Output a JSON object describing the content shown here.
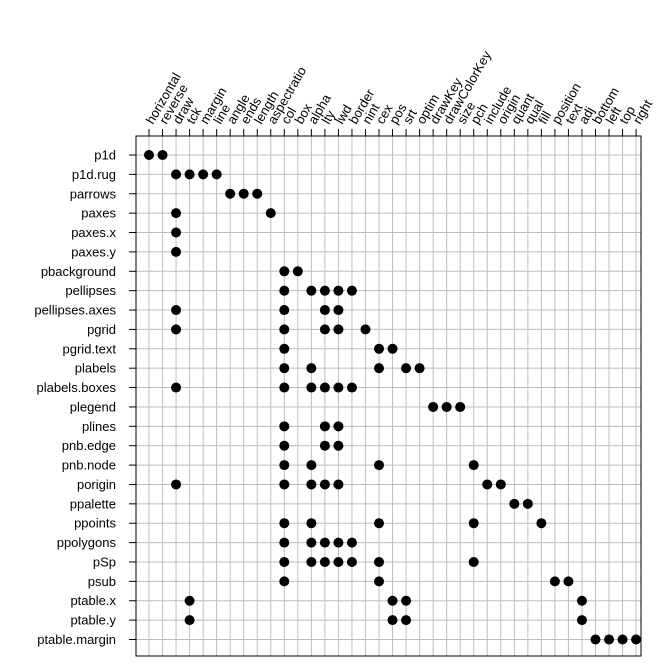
{
  "chart_data": {
    "type": "scatter",
    "title": "",
    "xlabel": "",
    "ylabel": "",
    "grid": true,
    "legend": "none",
    "x_categories": [
      "horizontal",
      "reverse",
      "draw",
      "tck",
      "margin",
      "line",
      "angle",
      "ends",
      "length",
      "aspectratio",
      "col",
      "box",
      "alpha",
      "lty",
      "lwd",
      "border",
      "nint",
      "cex",
      "pos",
      "srt",
      "optim",
      "drawKey",
      "drawColorKey",
      "size",
      "pch",
      "include",
      "origin",
      "quant",
      "qual",
      "fill",
      "position",
      "text",
      "adj",
      "bottom",
      "left",
      "top",
      "right"
    ],
    "y_categories": [
      "p1d",
      "p1d.rug",
      "parrows",
      "paxes",
      "paxes.x",
      "paxes.y",
      "pbackground",
      "pellipses",
      "pellipses.axes",
      "pgrid",
      "pgrid.text",
      "plabels",
      "plabels.boxes",
      "plegend",
      "plines",
      "pnb.edge",
      "pnb.node",
      "porigin",
      "ppalette",
      "ppoints",
      "ppolygons",
      "pSp",
      "psub",
      "ptable.x",
      "ptable.y",
      "ptable.margin"
    ],
    "points": [
      {
        "y": "p1d",
        "x": [
          "horizontal",
          "reverse"
        ]
      },
      {
        "y": "p1d.rug",
        "x": [
          "draw",
          "tck",
          "margin",
          "line"
        ]
      },
      {
        "y": "parrows",
        "x": [
          "angle",
          "ends",
          "length"
        ]
      },
      {
        "y": "paxes",
        "x": [
          "draw",
          "aspectratio"
        ]
      },
      {
        "y": "paxes.x",
        "x": [
          "draw"
        ]
      },
      {
        "y": "paxes.y",
        "x": [
          "draw"
        ]
      },
      {
        "y": "pbackground",
        "x": [
          "col",
          "box"
        ]
      },
      {
        "y": "pellipses",
        "x": [
          "col",
          "alpha",
          "lty",
          "lwd",
          "border"
        ]
      },
      {
        "y": "pellipses.axes",
        "x": [
          "draw",
          "col",
          "lty",
          "lwd"
        ]
      },
      {
        "y": "pgrid",
        "x": [
          "draw",
          "col",
          "lty",
          "lwd",
          "nint"
        ]
      },
      {
        "y": "pgrid.text",
        "x": [
          "col",
          "cex",
          "pos"
        ]
      },
      {
        "y": "plabels",
        "x": [
          "col",
          "alpha",
          "cex",
          "srt",
          "optim"
        ]
      },
      {
        "y": "plabels.boxes",
        "x": [
          "draw",
          "col",
          "alpha",
          "lty",
          "lwd",
          "border"
        ]
      },
      {
        "y": "plegend",
        "x": [
          "drawKey",
          "drawColorKey",
          "size"
        ]
      },
      {
        "y": "plines",
        "x": [
          "col",
          "lty",
          "lwd"
        ]
      },
      {
        "y": "pnb.edge",
        "x": [
          "col",
          "lty",
          "lwd"
        ]
      },
      {
        "y": "pnb.node",
        "x": [
          "col",
          "alpha",
          "cex",
          "pch"
        ]
      },
      {
        "y": "porigin",
        "x": [
          "draw",
          "col",
          "alpha",
          "lty",
          "lwd",
          "include",
          "origin"
        ]
      },
      {
        "y": "ppalette",
        "x": [
          "quant",
          "qual"
        ]
      },
      {
        "y": "ppoints",
        "x": [
          "col",
          "alpha",
          "cex",
          "pch",
          "fill"
        ]
      },
      {
        "y": "ppolygons",
        "x": [
          "col",
          "alpha",
          "lty",
          "lwd",
          "border"
        ]
      },
      {
        "y": "pSp",
        "x": [
          "col",
          "alpha",
          "lty",
          "lwd",
          "border",
          "cex",
          "pch"
        ]
      },
      {
        "y": "psub",
        "x": [
          "col",
          "cex",
          "position",
          "text"
        ]
      },
      {
        "y": "ptable.x",
        "x": [
          "tck",
          "pos",
          "srt",
          "adj"
        ]
      },
      {
        "y": "ptable.y",
        "x": [
          "tck",
          "pos",
          "srt",
          "adj"
        ]
      },
      {
        "y": "ptable.margin",
        "x": [
          "bottom",
          "left",
          "top",
          "right"
        ]
      }
    ]
  }
}
